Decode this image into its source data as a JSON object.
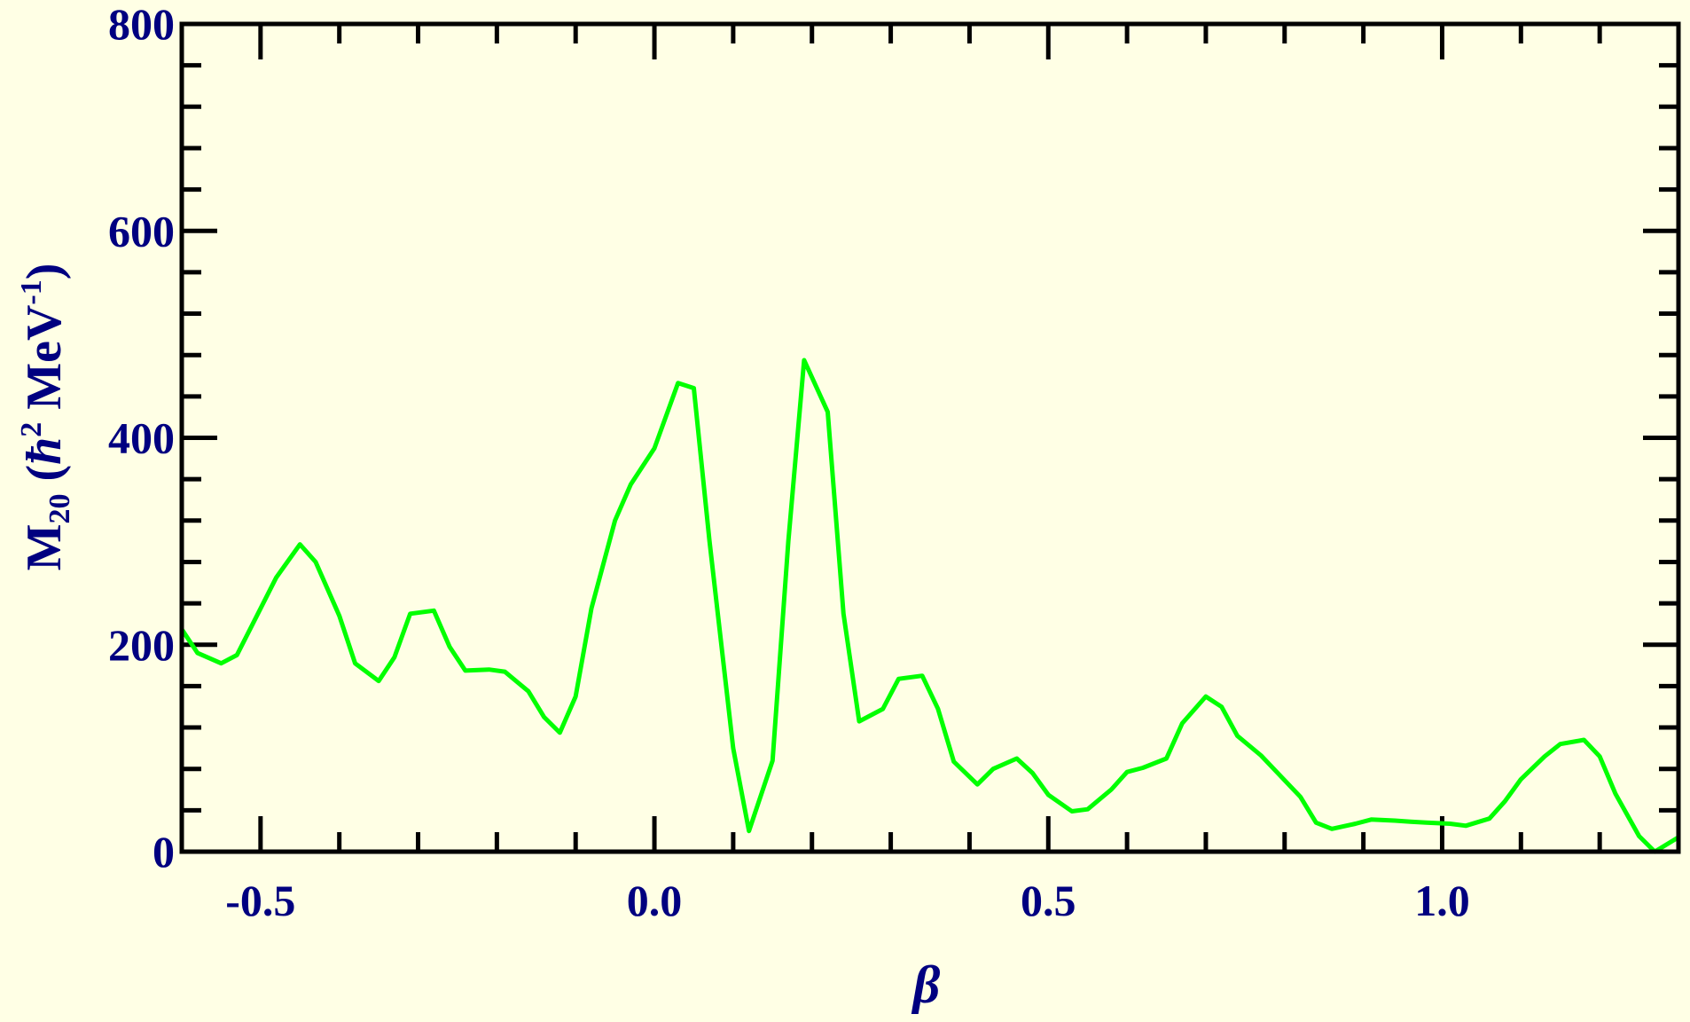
{
  "colors": {
    "background": "#ffffe5",
    "axis": "#000000",
    "label": "#000080",
    "series": "#00ff00"
  },
  "chart_data": {
    "type": "line",
    "title": "",
    "xlabel": "β",
    "ylabel_parts": {
      "main": "M",
      "sub": "20",
      "open": " (",
      "hbar": "ħ",
      "sup2": "2",
      "unit": " MeV",
      "supneg1": "-1",
      "close": ")"
    },
    "xlim": [
      -0.6,
      1.3
    ],
    "ylim": [
      0,
      800
    ],
    "x_ticks": [
      {
        "value": -0.5,
        "label": "-0.5"
      },
      {
        "value": 0.0,
        "label": "0.0"
      },
      {
        "value": 0.5,
        "label": "0.5"
      },
      {
        "value": 1.0,
        "label": "1.0"
      }
    ],
    "x_minor_step": 0.1,
    "y_ticks": [
      {
        "value": 0,
        "label": "0"
      },
      {
        "value": 200,
        "label": "200"
      },
      {
        "value": 400,
        "label": "400"
      },
      {
        "value": 600,
        "label": "600"
      },
      {
        "value": 800,
        "label": "800"
      }
    ],
    "y_minor_step": 40,
    "grid": false,
    "legend": "none",
    "series": [
      {
        "x": [
          -0.6,
          -0.58,
          -0.55,
          -0.53,
          -0.51,
          -0.48,
          -0.45,
          -0.43,
          -0.4,
          -0.38,
          -0.35,
          -0.33,
          -0.31,
          -0.28,
          -0.26,
          -0.24,
          -0.21,
          -0.19,
          -0.16,
          -0.14,
          -0.12,
          -0.1,
          -0.08,
          -0.05,
          -0.03,
          0.0,
          0.03,
          0.05,
          0.07,
          0.1,
          0.12,
          0.15,
          0.17,
          0.19,
          0.22,
          0.24,
          0.26,
          0.29,
          0.31,
          0.34,
          0.36,
          0.38,
          0.41,
          0.43,
          0.46,
          0.48,
          0.5,
          0.53,
          0.55,
          0.58,
          0.6,
          0.62,
          0.65,
          0.67,
          0.7,
          0.72,
          0.74,
          0.77,
          0.79,
          0.82,
          0.84,
          0.86,
          0.89,
          0.91,
          0.94,
          0.96,
          0.98,
          1.01,
          1.03,
          1.06,
          1.08,
          1.1,
          1.13,
          1.15,
          1.18,
          1.2,
          1.22,
          1.25,
          1.27,
          1.3
        ],
        "y": [
          215,
          192,
          182,
          190,
          220,
          265,
          297,
          280,
          228,
          182,
          165,
          188,
          230,
          233,
          198,
          175,
          176,
          174,
          155,
          130,
          115,
          150,
          235,
          320,
          355,
          390,
          453,
          448,
          300,
          100,
          20,
          88,
          300,
          475,
          425,
          230,
          126,
          138,
          167,
          170,
          138,
          87,
          65,
          80,
          90,
          76,
          55,
          39,
          41,
          60,
          77,
          81,
          90,
          124,
          150,
          140,
          112,
          93,
          77,
          53,
          28,
          22,
          27,
          31,
          30,
          29,
          28,
          27,
          25,
          32,
          49,
          70,
          92,
          104,
          108,
          92,
          56,
          15,
          0,
          14
        ]
      }
    ]
  }
}
